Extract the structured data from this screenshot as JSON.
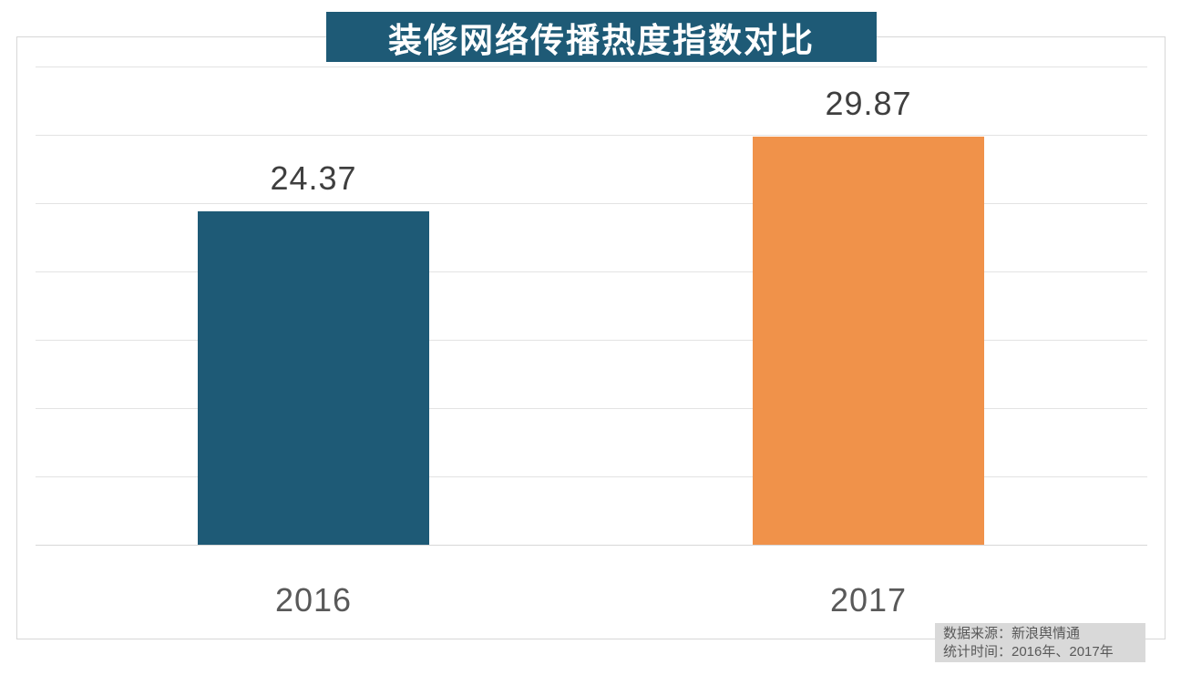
{
  "title": {
    "text": "装修网络传播热度指数对比",
    "bg_color": "#1e5a76",
    "text_color": "#ffffff"
  },
  "source_note": {
    "line1": "数据来源：新浪舆情通",
    "line2": "统计时间：2016年、2017年"
  },
  "chart_data": {
    "type": "bar",
    "title": "装修网络传播热度指数对比",
    "categories": [
      "2016",
      "2017"
    ],
    "values": [
      24.37,
      29.87
    ],
    "value_labels": [
      "24.37",
      "29.87"
    ],
    "bar_colors": [
      "#1e5a76",
      "#f0924a"
    ],
    "xlabel": "",
    "ylabel": "",
    "ylim": [
      0,
      35
    ],
    "gridline_step": 5,
    "grid": true,
    "legend": "none",
    "annotations": [
      "数据来源：新浪舆情通",
      "统计时间：2016年、2017年"
    ]
  },
  "colors": {
    "grid": "#e3e3e3",
    "axis": "#d7d7d7",
    "value_label": "#3f3f3f",
    "category_label": "#595959",
    "source_bg": "#d9d9d9",
    "source_text": "#595959"
  }
}
